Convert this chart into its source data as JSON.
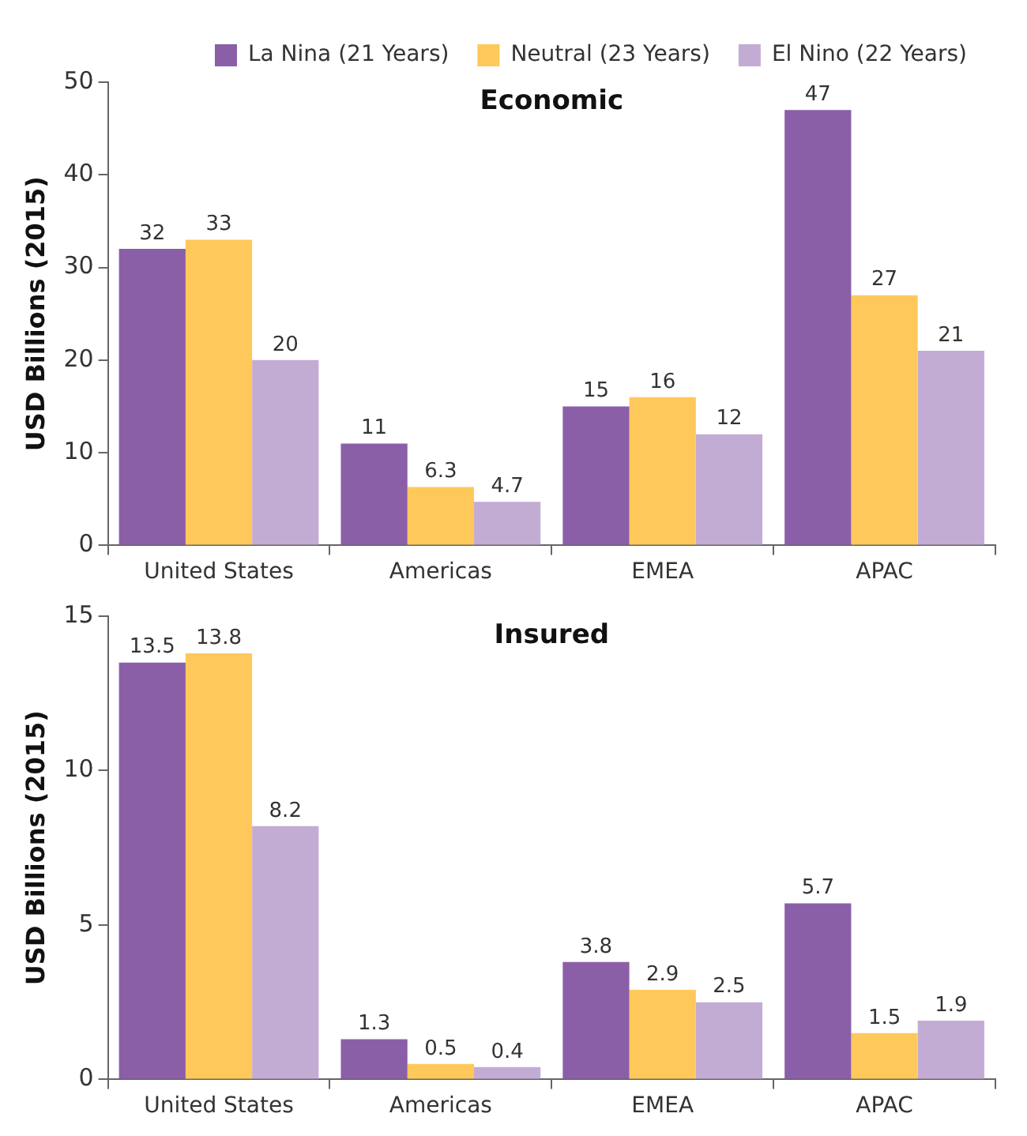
{
  "chart_data": [
    {
      "type": "bar",
      "title": "Economic",
      "ylabel": "USD Billions (2015)",
      "categories": [
        "United States",
        "Americas",
        "EMEA",
        "APAC"
      ],
      "series": [
        {
          "name": "La Nina (21 Years)",
          "color": "#8a5fa8",
          "values": [
            32,
            11,
            15,
            47
          ]
        },
        {
          "name": "Neutral (23 Years)",
          "color": "#ffc85a",
          "values": [
            33,
            6.3,
            16,
            27
          ]
        },
        {
          "name": "El Nino (22 Years)",
          "color": "#c3acd4",
          "values": [
            20,
            4.7,
            12,
            21
          ]
        }
      ],
      "ylim": [
        0,
        50
      ],
      "yticks": [
        0,
        10,
        20,
        30,
        40,
        50
      ],
      "grid": false,
      "legend": "top",
      "data_labels": true
    },
    {
      "type": "bar",
      "title": "Insured",
      "ylabel": "USD Billions (2015)",
      "categories": [
        "United States",
        "Americas",
        "EMEA",
        "APAC"
      ],
      "series": [
        {
          "color": "#8a5fa8",
          "values": [
            13.5,
            1.3,
            3.8,
            5.7
          ]
        },
        {
          "color": "#ffc85a",
          "values": [
            13.8,
            0.5,
            2.9,
            1.5
          ]
        },
        {
          "color": "#c3acd4",
          "values": [
            8.2,
            0.4,
            2.5,
            1.9
          ]
        }
      ],
      "ylim": [
        0,
        15
      ],
      "yticks": [
        0,
        5,
        10,
        15
      ],
      "grid": false,
      "legend": false,
      "data_labels": true
    }
  ]
}
